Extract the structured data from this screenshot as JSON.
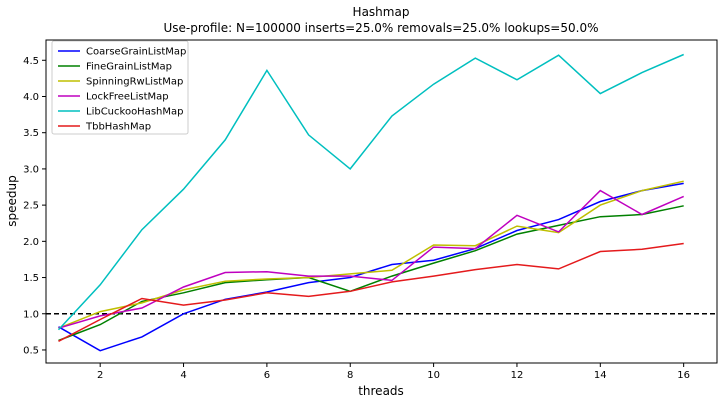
{
  "chart_data": {
    "type": "line",
    "title": "Hashmap",
    "subtitle": "Use-profile: N=100000 inserts=25.0% removals=25.0% lookups=50.0%",
    "xlabel": "threads",
    "ylabel": "speedup",
    "xlim": [
      0.7,
      16.8
    ],
    "ylim": [
      0.32,
      4.78
    ],
    "xticks": [
      2,
      4,
      6,
      8,
      10,
      12,
      14,
      16
    ],
    "yticks": [
      0.5,
      1.0,
      1.5,
      2.0,
      2.5,
      3.0,
      3.5,
      4.0,
      4.5
    ],
    "xtick_labels": [
      "2",
      "4",
      "6",
      "8",
      "10",
      "12",
      "14",
      "16"
    ],
    "ytick_labels": [
      "0.5",
      "1.0",
      "1.5",
      "2.0",
      "2.5",
      "3.0",
      "3.5",
      "4.0",
      "4.5"
    ],
    "grid": false,
    "legend_position": "top-left",
    "reference_line": {
      "y": 1.0,
      "style": "dashed",
      "color": "#000000"
    },
    "x": [
      1,
      2,
      3,
      4,
      5,
      6,
      7,
      8,
      9,
      10,
      11,
      12,
      13,
      14,
      15,
      16
    ],
    "series": [
      {
        "name": "CoarseGrainListMap",
        "color": "#0000ff",
        "values": [
          0.82,
          0.49,
          0.68,
          1.0,
          1.2,
          1.3,
          1.43,
          1.5,
          1.68,
          1.74,
          1.9,
          2.15,
          2.3,
          2.55,
          2.7,
          2.8
        ]
      },
      {
        "name": "FineGrainListMap",
        "color": "#008000",
        "values": [
          0.63,
          0.85,
          1.17,
          1.29,
          1.43,
          1.47,
          1.5,
          1.31,
          1.52,
          1.7,
          1.87,
          2.1,
          2.22,
          2.34,
          2.37,
          2.49
        ]
      },
      {
        "name": "SpinningRwListMap",
        "color": "#bfbf00",
        "values": [
          0.8,
          1.03,
          1.15,
          1.33,
          1.45,
          1.48,
          1.5,
          1.55,
          1.6,
          1.95,
          1.94,
          2.21,
          2.12,
          2.5,
          2.7,
          2.83
        ]
      },
      {
        "name": "LockFreeListMap",
        "color": "#bf00bf",
        "values": [
          0.8,
          0.97,
          1.08,
          1.37,
          1.57,
          1.58,
          1.52,
          1.52,
          1.46,
          1.92,
          1.9,
          2.36,
          2.13,
          2.7,
          2.37,
          2.62
        ]
      },
      {
        "name": "LibCuckooHashMap",
        "color": "#00bfbf",
        "values": [
          0.78,
          1.4,
          2.16,
          2.72,
          3.4,
          4.36,
          3.47,
          3.0,
          3.73,
          4.17,
          4.53,
          4.23,
          4.57,
          4.04,
          4.33,
          4.58
        ]
      },
      {
        "name": "TbbHashMap",
        "color": "#e41a1c",
        "values": [
          0.62,
          0.92,
          1.21,
          1.12,
          1.19,
          1.29,
          1.24,
          1.31,
          1.44,
          1.52,
          1.61,
          1.68,
          1.62,
          1.86,
          1.89,
          1.97
        ]
      }
    ]
  }
}
